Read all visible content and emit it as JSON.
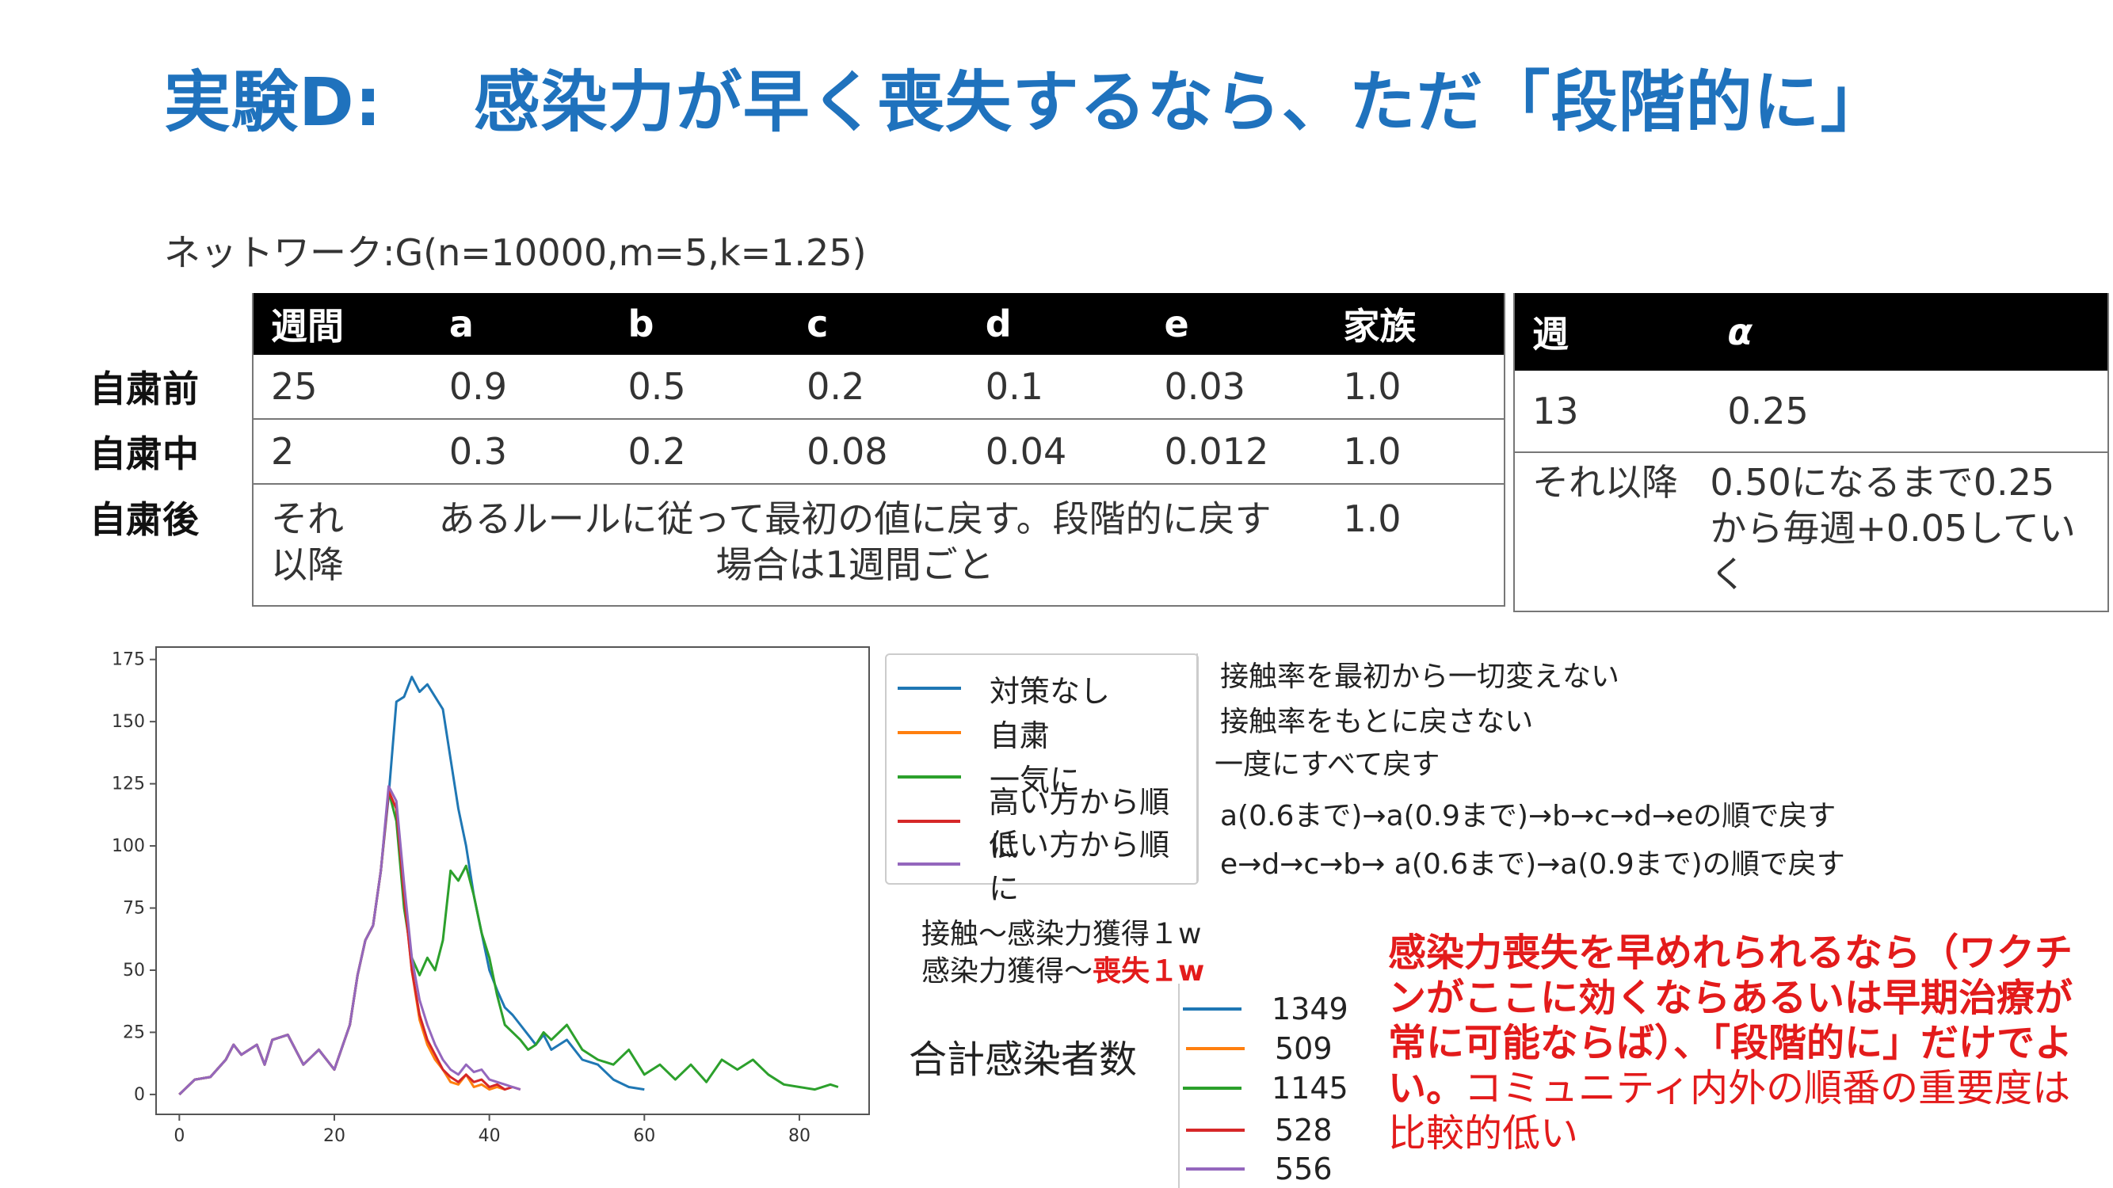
{
  "title": "実験D:　 感染力が早く喪失するなら、ただ「段階的に」",
  "network_label": "ネットワーク:G(n=10000,m=5,k=1.25)",
  "main_table": {
    "headers": [
      "週間",
      "a",
      "b",
      "c",
      "d",
      "e",
      "家族"
    ],
    "row_labels": [
      "自粛前",
      "自粛中",
      "自粛後"
    ],
    "rows": [
      [
        "25",
        "0.9",
        "0.5",
        "0.2",
        "0.1",
        "0.03",
        "1.0"
      ],
      [
        "2",
        "0.3",
        "0.2",
        "0.08",
        "0.04",
        "0.012",
        "1.0"
      ]
    ],
    "after_row": {
      "week": "それ以降",
      "rule": "あるルールに従って最初の値に戻す。段階的に戻す場合は1週間ごと",
      "family": "1.0"
    }
  },
  "alpha_table": {
    "headers": [
      "週",
      "α"
    ],
    "rows": [
      [
        "13",
        "0.25"
      ]
    ],
    "after_row": [
      "それ以降",
      "0.50になるまで0.25から毎週+0.05していく"
    ]
  },
  "legend": [
    {
      "label": "対策なし",
      "color": "#1f77b4",
      "description": "接触率を最初から一切変えない"
    },
    {
      "label": "自粛",
      "color": "#ff7f0e",
      "description": "接触率をもとに戻さない"
    },
    {
      "label": "一気に",
      "color": "#2ca02c",
      "description": "一度にすべて戻す"
    },
    {
      "label": "高い方から順に",
      "color": "#d62728",
      "description": "a(0.6まで)→a(0.9まで)→b→c→d→eの順で戻す"
    },
    {
      "label": "低い方から順に",
      "color": "#9467bd",
      "description": "e→d→c→b→ a(0.6まで)→a(0.9まで)の順で戻す"
    }
  ],
  "period": {
    "line1": "接触〜感染力獲得１w",
    "line2_prefix": "感染力獲得〜",
    "line2_red": "喪失１w"
  },
  "total_label": "合計感染者数",
  "totals": [
    "1349",
    "509",
    "1145",
    "528",
    "556"
  ],
  "note": {
    "bold": "感染力喪失を早めれられるなら（ワクチンがここに効くならあるいは早期治療が常に可能ならば）、「段階的に」だけでよい。",
    "normal": "コミュニティ内外の順番の重要度は比較的低い"
  },
  "chart_data": {
    "type": "line",
    "xlim": [
      -3,
      89
    ],
    "ylim": [
      -8,
      180
    ],
    "xticks": [
      0,
      20,
      40,
      60,
      80
    ],
    "yticks": [
      0,
      25,
      50,
      75,
      100,
      125,
      150,
      175
    ],
    "grid": false,
    "series": [
      {
        "name": "対策なし",
        "color": "#1f77b4",
        "x": [
          0,
          2,
          4,
          6,
          7,
          8,
          10,
          11,
          12,
          14,
          15,
          16,
          18,
          20,
          22,
          23,
          24,
          25,
          26,
          27,
          28,
          29,
          30,
          31,
          32,
          33,
          34,
          35,
          36,
          37,
          38,
          39,
          40,
          41,
          42,
          43,
          44,
          45,
          46,
          47,
          48,
          50,
          52,
          54,
          56,
          58,
          60
        ],
        "y": [
          0,
          6,
          7,
          14,
          20,
          16,
          20,
          12,
          22,
          24,
          18,
          12,
          18,
          10,
          28,
          48,
          62,
          68,
          90,
          120,
          158,
          160,
          168,
          162,
          165,
          160,
          155,
          135,
          115,
          100,
          80,
          65,
          50,
          42,
          35,
          32,
          28,
          24,
          20,
          24,
          18,
          22,
          14,
          12,
          6,
          3,
          2
        ]
      },
      {
        "name": "自粛",
        "color": "#ff7f0e",
        "x": [
          0,
          2,
          4,
          6,
          7,
          8,
          10,
          11,
          12,
          14,
          15,
          16,
          18,
          20,
          22,
          23,
          24,
          25,
          26,
          27,
          28,
          29,
          30,
          31,
          32,
          33,
          34,
          35,
          36,
          37,
          38,
          39,
          40,
          41,
          42
        ],
        "y": [
          0,
          6,
          7,
          14,
          20,
          16,
          20,
          12,
          22,
          24,
          18,
          12,
          18,
          10,
          28,
          48,
          62,
          68,
          90,
          122,
          115,
          80,
          50,
          30,
          20,
          14,
          10,
          5,
          4,
          8,
          3,
          4,
          2,
          3,
          2
        ]
      },
      {
        "name": "一気に",
        "color": "#2ca02c",
        "x": [
          0,
          2,
          4,
          6,
          7,
          8,
          10,
          11,
          12,
          14,
          15,
          16,
          18,
          20,
          22,
          23,
          24,
          25,
          26,
          27,
          28,
          29,
          30,
          31,
          32,
          33,
          34,
          35,
          36,
          37,
          38,
          39,
          40,
          41,
          42,
          43,
          44,
          45,
          46,
          47,
          48,
          50,
          52,
          54,
          56,
          58,
          60,
          62,
          64,
          66,
          68,
          70,
          72,
          74,
          76,
          78,
          80,
          82,
          84,
          85
        ],
        "y": [
          0,
          6,
          7,
          14,
          20,
          16,
          20,
          12,
          22,
          24,
          18,
          12,
          18,
          10,
          28,
          48,
          62,
          68,
          90,
          122,
          110,
          75,
          55,
          48,
          55,
          50,
          62,
          90,
          86,
          92,
          80,
          65,
          55,
          40,
          28,
          25,
          22,
          18,
          20,
          25,
          22,
          28,
          18,
          14,
          12,
          18,
          8,
          12,
          6,
          12,
          5,
          14,
          10,
          14,
          8,
          4,
          3,
          2,
          4,
          3
        ]
      },
      {
        "name": "高い方から順に",
        "color": "#d62728",
        "x": [
          0,
          2,
          4,
          6,
          7,
          8,
          10,
          11,
          12,
          14,
          15,
          16,
          18,
          20,
          22,
          23,
          24,
          25,
          26,
          27,
          28,
          29,
          30,
          31,
          32,
          33,
          34,
          35,
          36,
          37,
          38,
          39,
          40,
          41,
          42,
          43,
          44
        ],
        "y": [
          0,
          6,
          7,
          14,
          20,
          16,
          20,
          12,
          22,
          24,
          18,
          12,
          18,
          10,
          28,
          48,
          62,
          68,
          90,
          122,
          115,
          80,
          50,
          32,
          22,
          16,
          10,
          7,
          5,
          8,
          5,
          6,
          3,
          4,
          2,
          3,
          2
        ]
      },
      {
        "name": "低い方から順に",
        "color": "#9467bd",
        "x": [
          0,
          2,
          4,
          6,
          7,
          8,
          10,
          11,
          12,
          14,
          15,
          16,
          18,
          20,
          22,
          23,
          24,
          25,
          26,
          27,
          28,
          29,
          30,
          31,
          32,
          33,
          34,
          35,
          36,
          37,
          38,
          39,
          40,
          41,
          42,
          43,
          44
        ],
        "y": [
          0,
          6,
          7,
          14,
          20,
          16,
          20,
          12,
          22,
          24,
          18,
          12,
          18,
          10,
          28,
          48,
          62,
          68,
          90,
          124,
          118,
          85,
          55,
          38,
          28,
          20,
          14,
          10,
          8,
          12,
          9,
          10,
          6,
          5,
          4,
          3,
          2
        ]
      }
    ]
  }
}
